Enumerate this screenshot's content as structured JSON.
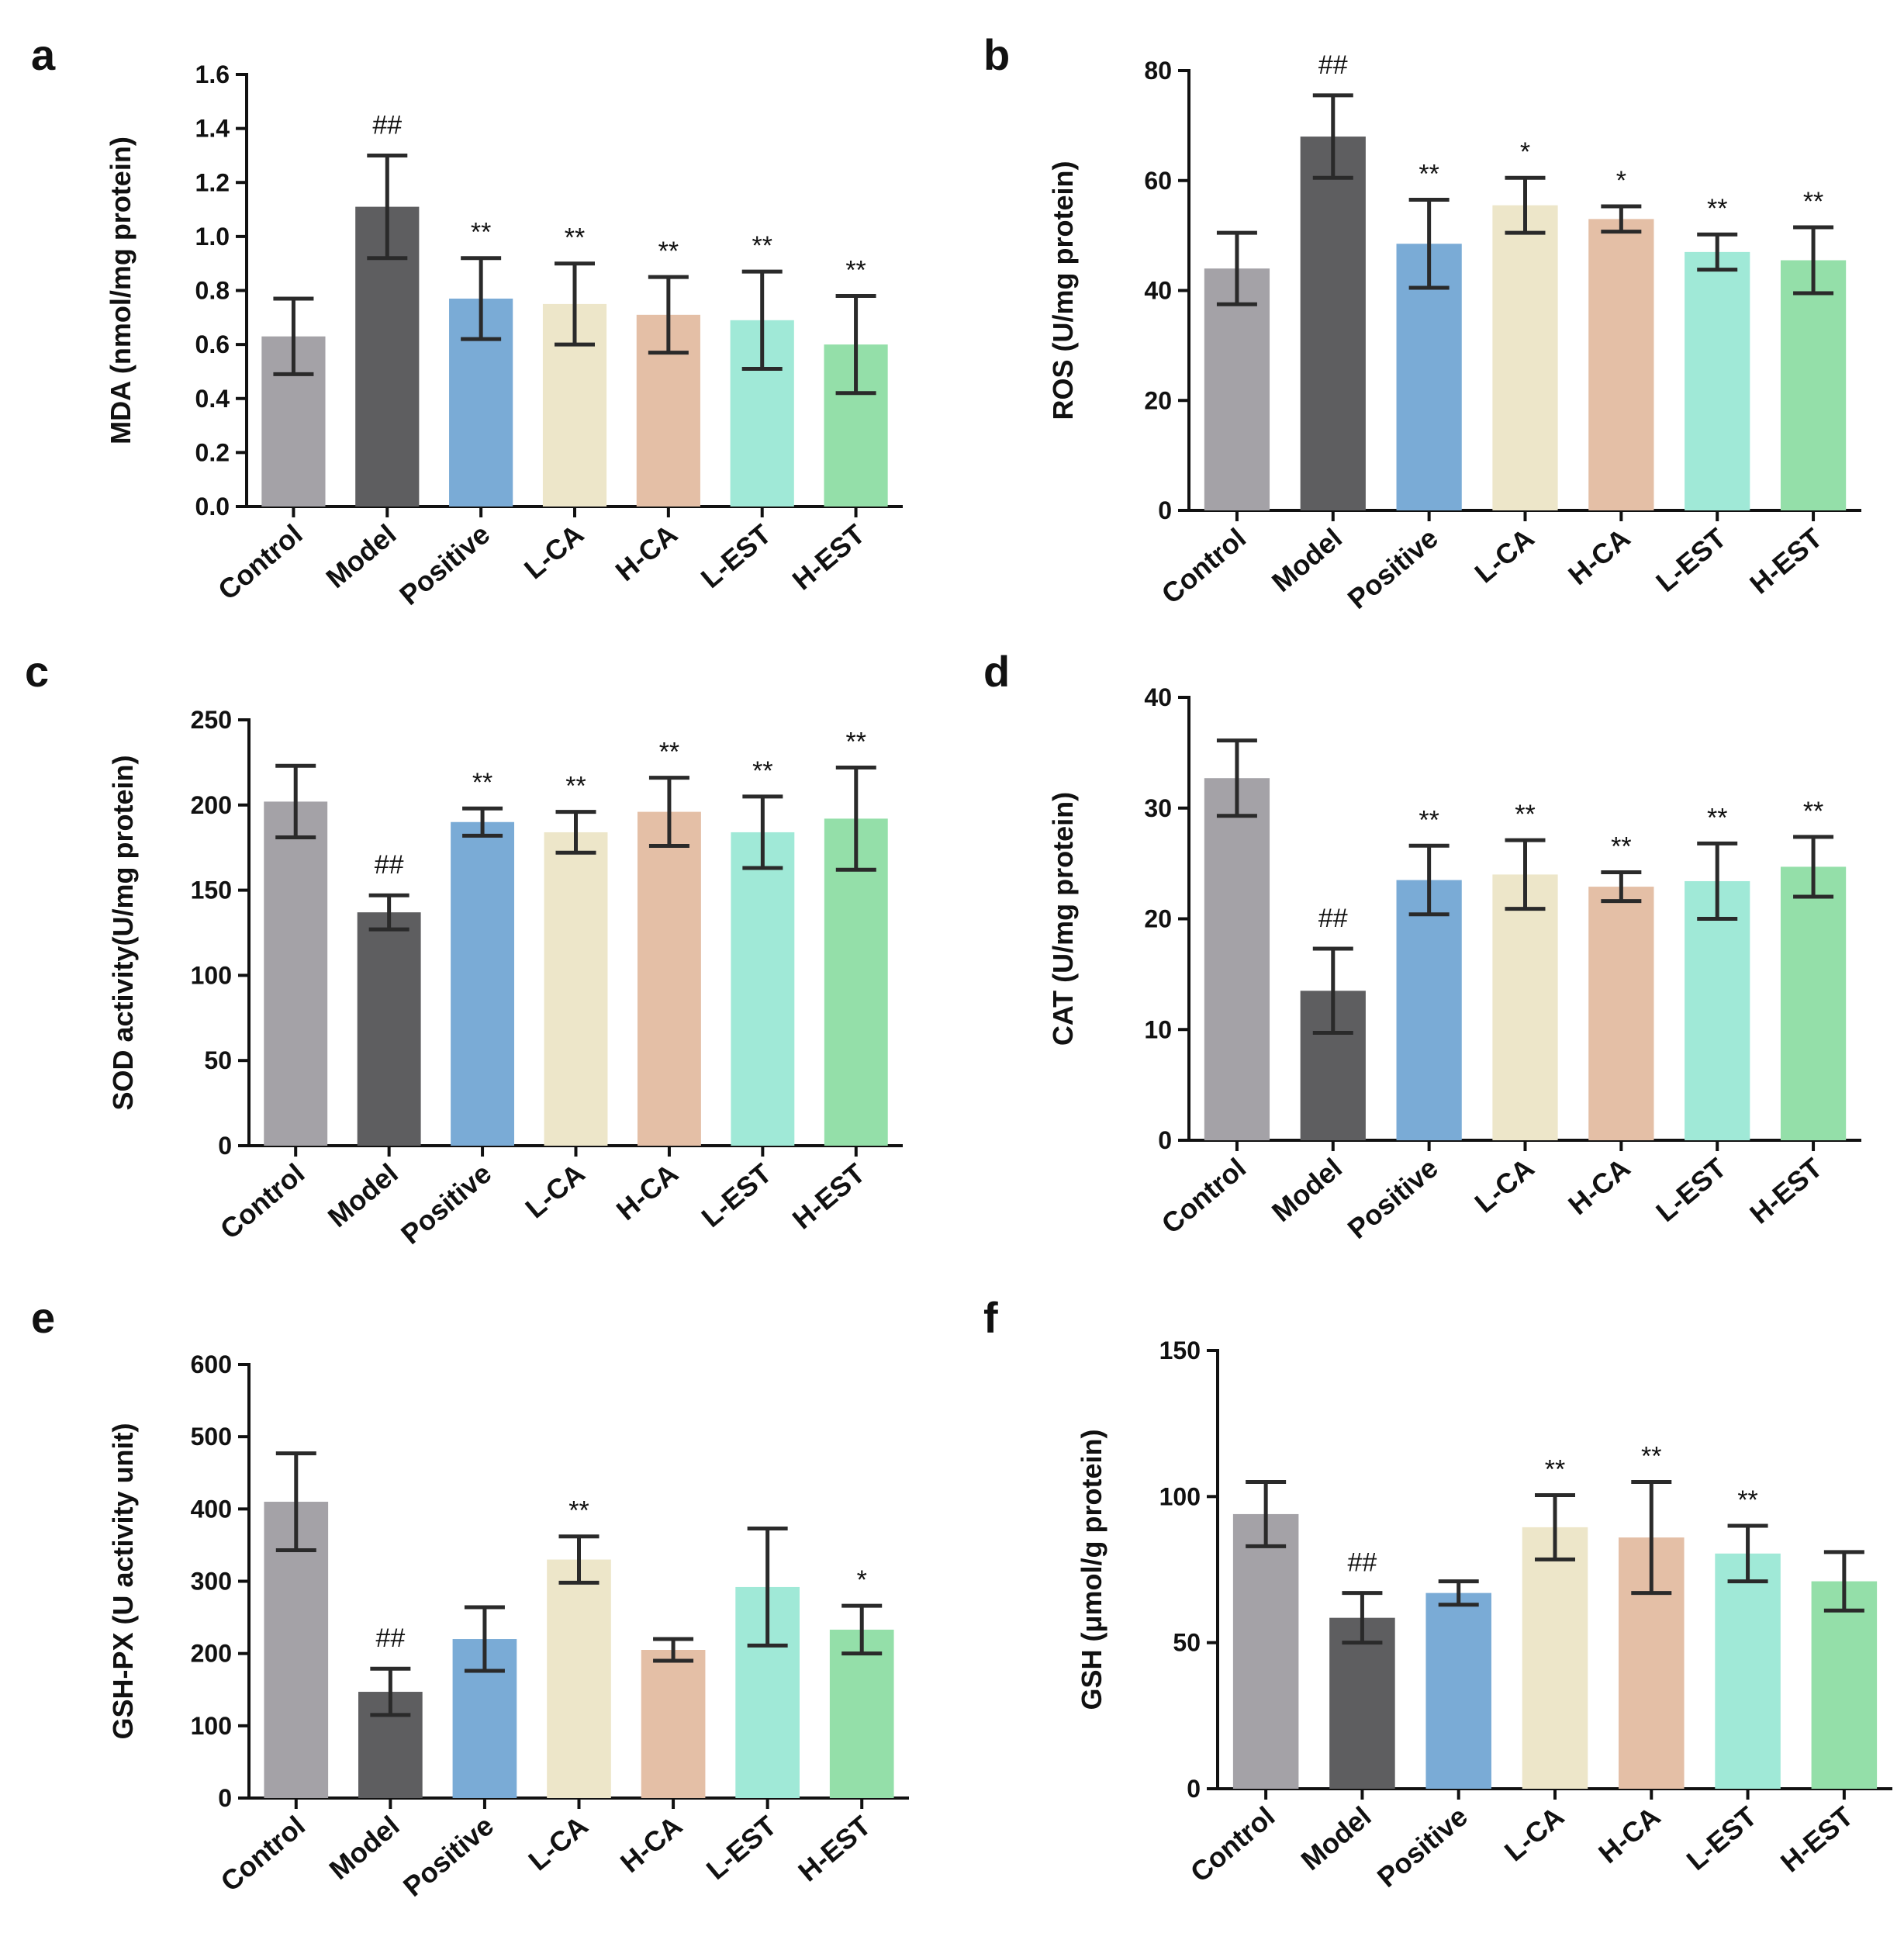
{
  "colors": {
    "Control": "#a4a2a7",
    "Model": "#5e5e60",
    "Positive": "#7aabd6",
    "L-CA": "#ede6c9",
    "H-CA": "#e4bfa6",
    "L-EST": "#a0e9d7",
    "H-EST": "#94dfa9"
  },
  "chart_data": [
    {
      "type": "bar",
      "panel": "a",
      "ylabel": "MDA (nmol/mg protein)",
      "ylim": [
        0,
        1.6
      ],
      "yticks": [
        "0.0",
        "0.2",
        "0.4",
        "0.6",
        "0.8",
        "1.0",
        "1.2",
        "1.4",
        "1.6"
      ],
      "categories": [
        "Control",
        "Model",
        "Positive",
        "L-CA",
        "H-CA",
        "L-EST",
        "H-EST"
      ],
      "values": [
        0.63,
        1.11,
        0.77,
        0.75,
        0.71,
        0.69,
        0.6
      ],
      "errors": [
        0.14,
        0.19,
        0.15,
        0.15,
        0.14,
        0.18,
        0.18
      ],
      "annotations": [
        "",
        "##",
        "**",
        "**",
        "**",
        "**",
        "**"
      ]
    },
    {
      "type": "bar",
      "panel": "b",
      "ylabel": "ROS (U/mg protein)",
      "ylim": [
        0,
        80
      ],
      "yticks": [
        "0",
        "20",
        "40",
        "60",
        "80"
      ],
      "categories": [
        "Control",
        "Model",
        "Positive",
        "L-CA",
        "H-CA",
        "L-EST",
        "H-EST"
      ],
      "values": [
        44,
        68,
        48.5,
        55.5,
        53,
        47,
        45.5
      ],
      "errors": [
        6.5,
        7.5,
        8,
        5,
        2.3,
        3.2,
        6
      ],
      "annotations": [
        "",
        "##",
        "**",
        "*",
        "*",
        "**",
        "**"
      ]
    },
    {
      "type": "bar",
      "panel": "c",
      "ylabel": "SOD activity(U/mg protein)",
      "ylim": [
        0,
        250
      ],
      "yticks": [
        "0",
        "50",
        "100",
        "150",
        "200",
        "250"
      ],
      "categories": [
        "Control",
        "Model",
        "Positive",
        "L-CA",
        "H-CA",
        "L-EST",
        "H-EST"
      ],
      "values": [
        202,
        137,
        190,
        184,
        196,
        184,
        192
      ],
      "errors": [
        21,
        10,
        8,
        12,
        20,
        21,
        30
      ],
      "annotations": [
        "",
        "##",
        "**",
        "**",
        "**",
        "**",
        "**"
      ]
    },
    {
      "type": "bar",
      "panel": "d",
      "ylabel": "CAT (U/mg protein)",
      "ylim": [
        0,
        40
      ],
      "yticks": [
        "0",
        "10",
        "20",
        "30",
        "40"
      ],
      "categories": [
        "Control",
        "Model",
        "Positive",
        "L-CA",
        "H-CA",
        "L-EST",
        "H-EST"
      ],
      "values": [
        32.7,
        13.5,
        23.5,
        24,
        22.9,
        23.4,
        24.7
      ],
      "errors": [
        3.4,
        3.8,
        3.1,
        3.1,
        1.3,
        3.4,
        2.7
      ],
      "annotations": [
        "",
        "##",
        "**",
        "**",
        "**",
        "**",
        "**"
      ]
    },
    {
      "type": "bar",
      "panel": "e",
      "ylabel": "GSH-PX (U activity unit)",
      "ylim": [
        0,
        600
      ],
      "yticks": [
        "0",
        "100",
        "200",
        "300",
        "400",
        "500",
        "600"
      ],
      "categories": [
        "Control",
        "Model",
        "Positive",
        "L-CA",
        "H-CA",
        "L-EST",
        "H-EST"
      ],
      "values": [
        410,
        147,
        220,
        330,
        205,
        292,
        233
      ],
      "errors": [
        67,
        32,
        44,
        32,
        15,
        81,
        33
      ],
      "annotations": [
        "",
        "##",
        "",
        "**",
        "",
        "",
        "*"
      ]
    },
    {
      "type": "bar",
      "panel": "f",
      "ylabel": "GSH (μmol/g protein)",
      "ylim": [
        0,
        150
      ],
      "yticks": [
        "0",
        "50",
        "100",
        "150"
      ],
      "categories": [
        "Control",
        "Model",
        "Positive",
        "L-CA",
        "H-CA",
        "L-EST",
        "H-EST"
      ],
      "values": [
        94,
        58.5,
        67,
        89.5,
        86,
        80.5,
        71
      ],
      "errors": [
        11,
        8.5,
        4,
        11,
        19,
        9.5,
        10
      ],
      "annotations": [
        "",
        "##",
        "",
        "**",
        "**",
        "**",
        ""
      ]
    }
  ]
}
